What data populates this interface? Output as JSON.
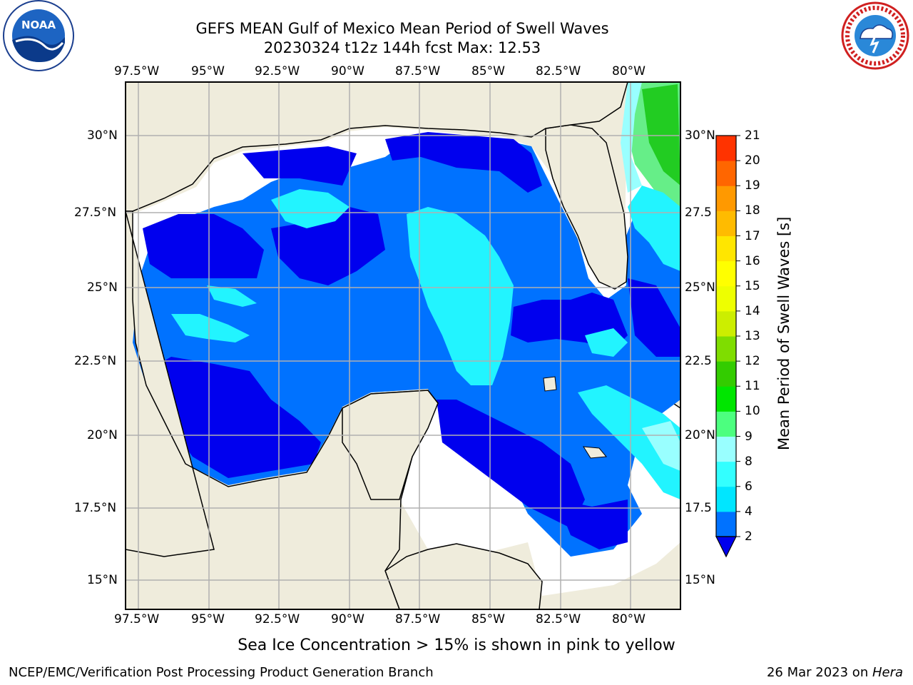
{
  "title": {
    "line1": "GEFS MEAN Gulf of Mexico Mean Period of Swell Waves",
    "line2": "20230324 t12z 144h fcst   Max: 12.53"
  },
  "logos": {
    "left": {
      "name": "noaa-logo",
      "text": "NOAA",
      "ring_text": "NATIONAL OCEANIC AND ATMOSPHERIC ADMINISTRATION · U.S. DEPARTMENT OF COMMERCE"
    },
    "right": {
      "name": "nws-logo",
      "ring_text": "NATIONAL WEATHER SERVICE"
    }
  },
  "map": {
    "lon_labels": [
      "97.5°W",
      "95°W",
      "92.5°W",
      "90°W",
      "87.5°W",
      "85°W",
      "82.5°W",
      "80°W"
    ],
    "lat_labels_left": [
      "30°N",
      "27.5°N",
      "25°N",
      "22.5°N",
      "20°N",
      "17.5°N",
      "15°N"
    ],
    "lat_labels_right": [
      "30°N",
      "27.5",
      "25°N",
      "22.5",
      "20°N",
      "17.5",
      "15°N"
    ],
    "land_color": "#efecdc",
    "water_nodata_color": "#ffffff",
    "grid_color": "#b0b0b0"
  },
  "colorbar": {
    "title": "Mean Period of Swell Waves [s]",
    "ticks": [
      "2",
      "4",
      "6",
      "8",
      "9",
      "10",
      "11",
      "12",
      "13",
      "14",
      "15",
      "16",
      "17",
      "18",
      "19",
      "20",
      "21"
    ],
    "colors": [
      "#0072ff",
      "#00e6ff",
      "#33ffff",
      "#99ffff",
      "#4cff7f",
      "#00e600",
      "#33cc00",
      "#7fdd00",
      "#ccee00",
      "#eeff00",
      "#ffff00",
      "#ffe600",
      "#ffbb00",
      "#ff9900",
      "#ff6600",
      "#ff3300",
      "#ff0000"
    ],
    "under_color": "#0000ee"
  },
  "note": "Sea Ice Concentration > 15% is shown in pink to yellow",
  "footer": {
    "left": "NCEP/EMC/Verification Post Processing Product Generation Branch",
    "date": "26 Mar 2023 on ",
    "machine": "Hera"
  }
}
